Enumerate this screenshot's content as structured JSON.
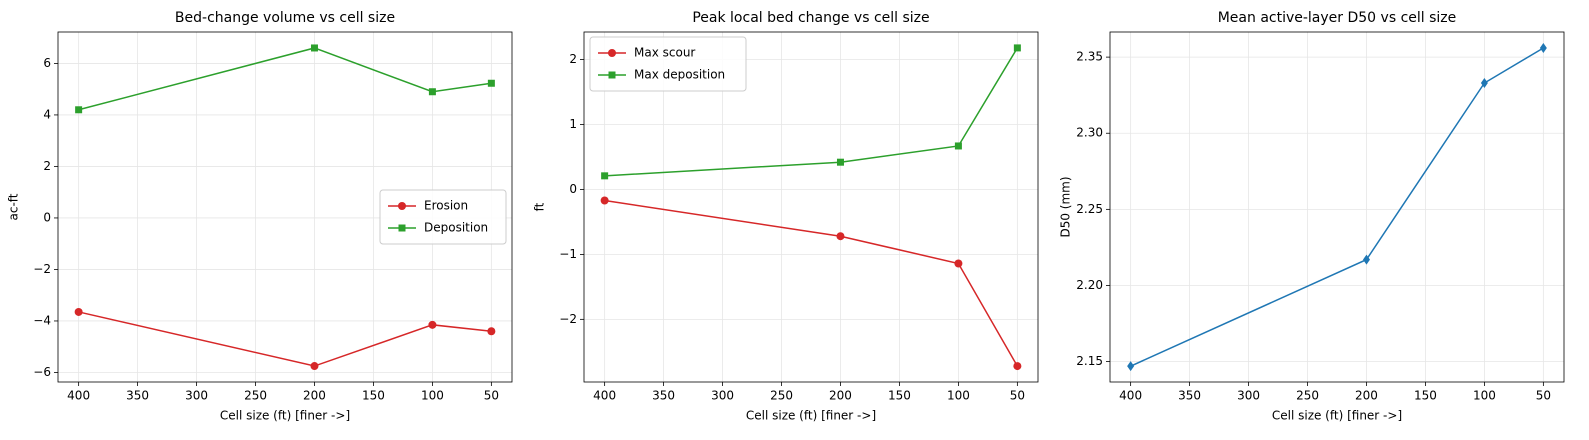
{
  "chart_data": [
    {
      "type": "line",
      "title": "Bed-change volume vs cell size",
      "xlabel": "Cell size (ft)  [finer ->]",
      "ylabel": "ac-ft",
      "x": [
        400,
        200,
        100,
        50
      ],
      "xlim": [
        417.5,
        32.5
      ],
      "xticks": [
        400,
        350,
        300,
        250,
        200,
        150,
        100,
        50
      ],
      "ylim": [
        -6.37,
        7.22
      ],
      "yticks": [
        {
          "value": -6,
          "label": "−6"
        },
        {
          "value": -4,
          "label": "−4"
        },
        {
          "value": -2,
          "label": "−2"
        },
        0,
        2,
        4,
        6
      ],
      "grid": true,
      "legend": "center right",
      "series": [
        {
          "name": "Erosion",
          "color": "#d62728",
          "marker": "circle",
          "values": [
            -3.65,
            -5.75,
            -4.15,
            -4.4
          ]
        },
        {
          "name": "Deposition",
          "color": "#2ca02c",
          "marker": "square",
          "values": [
            4.2,
            6.6,
            4.9,
            5.23
          ]
        }
      ]
    },
    {
      "type": "line",
      "title": "Peak local bed change vs cell size",
      "xlabel": "Cell size (ft)  [finer ->]",
      "ylabel": "ft",
      "x": [
        400,
        200,
        100,
        50
      ],
      "xlim": [
        417.5,
        32.5
      ],
      "xticks": [
        400,
        350,
        300,
        250,
        200,
        150,
        100,
        50
      ],
      "ylim": [
        -2.965,
        2.425
      ],
      "yticks": [
        {
          "value": -2,
          "label": "−2"
        },
        {
          "value": -1,
          "label": "−1"
        },
        0,
        1,
        2
      ],
      "grid": true,
      "legend": "upper left",
      "series": [
        {
          "name": "Max scour",
          "color": "#d62728",
          "marker": "circle",
          "values": [
            -0.17,
            -0.72,
            -1.14,
            -2.72
          ]
        },
        {
          "name": "Max deposition",
          "color": "#2ca02c",
          "marker": "square",
          "values": [
            0.21,
            0.42,
            0.67,
            2.18
          ]
        }
      ]
    },
    {
      "type": "line",
      "title": "Mean active-layer D50 vs cell size",
      "xlabel": "Cell size (ft)  [finer ->]",
      "ylabel": "D50 (mm)",
      "x": [
        400,
        200,
        100,
        50
      ],
      "xlim": [
        417.5,
        32.5
      ],
      "xticks": [
        400,
        350,
        300,
        250,
        200,
        150,
        100,
        50
      ],
      "ylim": [
        2.1366,
        2.3665
      ],
      "yticks": [
        2.15,
        {
          "value": 2.2,
          "label": "2.20"
        },
        2.25,
        {
          "value": 2.3,
          "label": "2.30"
        },
        2.35
      ],
      "grid": true,
      "series": [
        {
          "color": "#1f77b4",
          "marker": "diamond",
          "values": [
            2.147,
            2.217,
            2.333,
            2.356
          ]
        }
      ]
    }
  ]
}
